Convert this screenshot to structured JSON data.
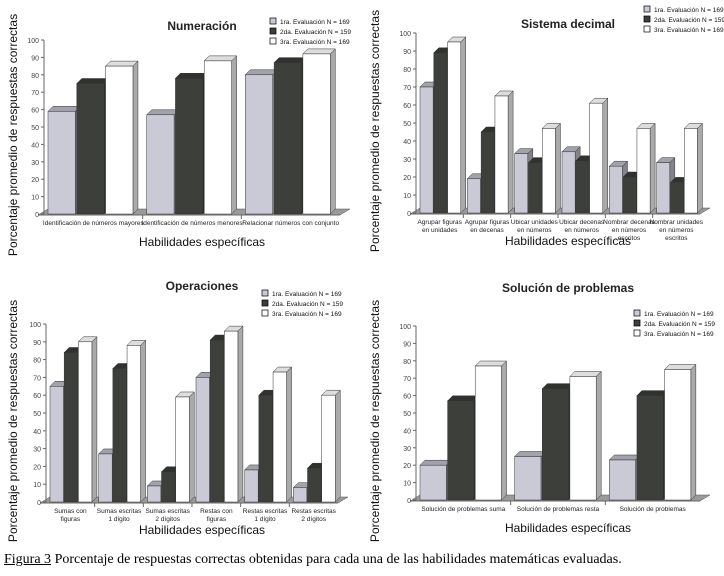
{
  "colors": {
    "eval1": "#c9cad6",
    "eval2": "#3c3f3a",
    "eval3": "#ffffff",
    "floor": "#9a9a9a"
  },
  "caption": {
    "figure_label": "Figura 3",
    "text": " Porcentaje de respuestas correctas obtenidas para cada una de las habilidades matemáticas evaluadas."
  },
  "chart_data": [
    {
      "type": "bar",
      "title": "Numeración",
      "xlabel": "Habilidades específicas",
      "ylabel": "Porcentaje promedio de respuestas correctas",
      "ylim": [
        0,
        100
      ],
      "yticks": [
        0,
        10,
        20,
        30,
        40,
        50,
        60,
        70,
        80,
        90,
        100
      ],
      "legend_position": "top-right",
      "categories": [
        [
          "Identificación de números mayores"
        ],
        [
          "Identificación de números menores"
        ],
        [
          "Relacionar números con conjunto"
        ]
      ],
      "series": [
        {
          "name": "1ra. Evaluación  N = 169",
          "values": [
            59,
            57,
            80
          ]
        },
        {
          "name": "2da. Evaluación  N = 159",
          "values": [
            75,
            78,
            87
          ]
        },
        {
          "name": "3ra. Evaluación  N = 169",
          "values": [
            85,
            88,
            92
          ]
        }
      ]
    },
    {
      "type": "bar",
      "title": "Sistema decimal",
      "xlabel": "Habilidades específicas",
      "ylabel": "Porcentaje promedio de respuestas correctas",
      "ylim": [
        0,
        100
      ],
      "yticks": [
        0,
        10,
        20,
        30,
        40,
        50,
        60,
        70,
        80,
        90,
        100
      ],
      "legend_position": "top-right",
      "categories": [
        [
          "Agrupar figuras",
          "en unidades"
        ],
        [
          "Agrupar figuras",
          "en decenas"
        ],
        [
          "Ubicar unidades",
          "en números"
        ],
        [
          "Ubicar decenas",
          "en números"
        ],
        [
          "Nombrar decenas",
          "en números",
          "escritos"
        ],
        [
          "Nombrar unidades",
          "en números",
          "escritos"
        ]
      ],
      "series": [
        {
          "name": "1ra. Evaluación  N = 169",
          "values": [
            70,
            19,
            33,
            34,
            26,
            28
          ]
        },
        {
          "name": "2da. Evaluación  N = 159",
          "values": [
            89,
            45,
            28,
            29,
            20,
            17
          ]
        },
        {
          "name": "3ra. Evaluación  N = 169",
          "values": [
            95,
            65,
            47,
            61,
            47,
            47
          ]
        }
      ]
    },
    {
      "type": "bar",
      "title": "Operaciones",
      "xlabel": "Habilidades específicas",
      "ylabel": "Porcentaje promedio de respuestas correctas",
      "ylim": [
        0,
        100
      ],
      "yticks": [
        0,
        10,
        20,
        30,
        40,
        50,
        60,
        70,
        80,
        90,
        100
      ],
      "legend_position": "top-right",
      "categories": [
        [
          "Sumas con",
          "figuras"
        ],
        [
          "Sumas escritas",
          "1 dígito"
        ],
        [
          "Sumas escritas",
          "2 dígitos"
        ],
        [
          "Restas con",
          "figuras"
        ],
        [
          "Restas escritas",
          "1 dígito"
        ],
        [
          "Restas escritas",
          "2 dígitos"
        ]
      ],
      "series": [
        {
          "name": "1ra. Evaluación  N = 169",
          "values": [
            65,
            27,
            9,
            70,
            18,
            8
          ]
        },
        {
          "name": "2da. Evaluación  N = 159",
          "values": [
            84,
            75,
            17,
            91,
            60,
            19
          ]
        },
        {
          "name": "3ra. Evaluación  N = 169",
          "values": [
            90,
            88,
            59,
            96,
            73,
            60
          ]
        }
      ]
    },
    {
      "type": "bar",
      "title": "Solución de problemas",
      "xlabel": "Habilidades específicas",
      "ylabel": "Porcentaje promedio de respuestas correctas",
      "ylim": [
        0,
        100
      ],
      "yticks": [
        0,
        10,
        20,
        30,
        40,
        50,
        60,
        70,
        80,
        90,
        100
      ],
      "legend_position": "top-right",
      "categories": [
        [
          "Solución de problemas suma"
        ],
        [
          "Solución de problemas resta"
        ],
        [
          "Solución de problemas"
        ]
      ],
      "series": [
        {
          "name": "1ra. Evaluación  N = 169",
          "values": [
            20,
            25,
            23
          ]
        },
        {
          "name": "2da. Evaluación  N = 159",
          "values": [
            57,
            64,
            60
          ]
        },
        {
          "name": "3ra. Evaluación  N = 169",
          "values": [
            77,
            71,
            75
          ]
        }
      ]
    }
  ]
}
